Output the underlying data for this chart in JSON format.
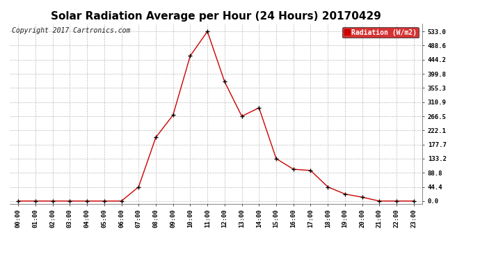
{
  "title": "Solar Radiation Average per Hour (24 Hours) 20170429",
  "copyright_text": "Copyright 2017 Cartronics.com",
  "legend_label": "Radiation (W/m2)",
  "hours": [
    "00:00",
    "01:00",
    "02:00",
    "03:00",
    "04:00",
    "05:00",
    "06:00",
    "07:00",
    "08:00",
    "09:00",
    "10:00",
    "11:00",
    "12:00",
    "13:00",
    "14:00",
    "15:00",
    "16:00",
    "17:00",
    "18:00",
    "19:00",
    "20:00",
    "21:00",
    "22:00",
    "23:00"
  ],
  "values": [
    0.0,
    0.0,
    0.0,
    0.0,
    0.0,
    0.0,
    0.0,
    44.4,
    200.0,
    270.0,
    456.0,
    533.0,
    375.0,
    266.5,
    293.0,
    133.2,
    100.0,
    96.0,
    44.4,
    22.0,
    12.0,
    0.0,
    0.0,
    0.0
  ],
  "line_color": "#cc0000",
  "marker_color": "#000000",
  "background_color": "#ffffff",
  "grid_color": "#bbbbbb",
  "yticks": [
    0.0,
    44.4,
    88.8,
    133.2,
    177.7,
    222.1,
    266.5,
    310.9,
    355.3,
    399.8,
    444.2,
    488.6,
    533.0
  ],
  "ylim": [
    -8,
    558
  ],
  "legend_bg": "#cc0000",
  "legend_text_color": "#ffffff",
  "title_fontsize": 11,
  "tick_fontsize": 6.5,
  "copyright_fontsize": 7
}
